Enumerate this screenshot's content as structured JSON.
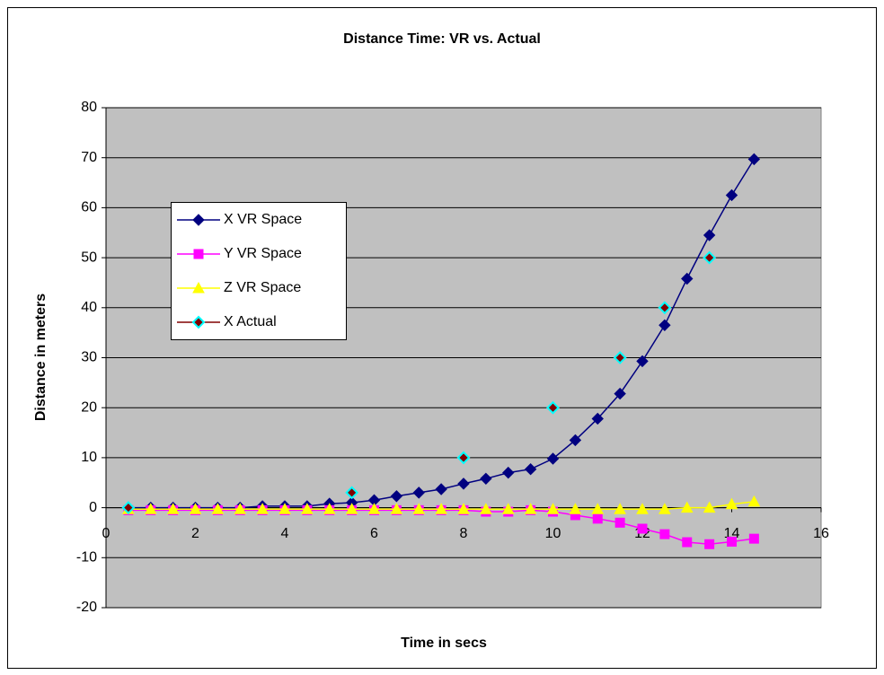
{
  "chart_data": {
    "type": "line",
    "title": "Distance Time: VR vs. Actual",
    "xlabel": "Time in secs",
    "ylabel": "Distance in meters",
    "xlim": [
      0,
      16
    ],
    "xticks": [
      0,
      2,
      4,
      6,
      8,
      10,
      12,
      14,
      16
    ],
    "ylim": [
      -20,
      80
    ],
    "yticks": [
      -20,
      -10,
      0,
      10,
      20,
      30,
      40,
      50,
      60,
      70,
      80
    ],
    "grid": true,
    "series": [
      {
        "name": "X VR Space",
        "color": "#000080",
        "marker": "diamond",
        "line": true,
        "x": [
          0.5,
          1,
          1.5,
          2,
          2.5,
          3,
          3.5,
          4,
          4.5,
          5,
          5.5,
          6,
          6.5,
          7,
          7.5,
          8,
          8.5,
          9,
          9.5,
          10,
          10.5,
          11,
          11.5,
          12,
          12.5,
          13,
          13.5,
          14,
          14.5
        ],
        "values": [
          0,
          0,
          0,
          0,
          0,
          0,
          0.3,
          0.3,
          0.3,
          0.8,
          1,
          1.5,
          2.3,
          3,
          3.7,
          4.8,
          5.8,
          7,
          7.7,
          9.8,
          13.5,
          17.8,
          22.8,
          29.3,
          36.5,
          45.8,
          54.5,
          62.5,
          69.7
        ]
      },
      {
        "name": "Y VR Space",
        "color": "#ff00ff",
        "marker": "square",
        "line": true,
        "x": [
          0.5,
          1,
          1.5,
          2,
          2.5,
          3,
          3.5,
          4,
          4.5,
          5,
          5.5,
          6,
          6.5,
          7,
          7.5,
          8,
          8.5,
          9,
          9.5,
          10,
          10.5,
          11,
          11.5,
          12,
          12.5,
          13,
          13.5,
          14,
          14.5
        ],
        "values": [
          -0.5,
          -0.5,
          -0.5,
          -0.5,
          -0.5,
          -0.5,
          -0.5,
          -0.5,
          -0.5,
          -0.5,
          -0.5,
          -0.5,
          -0.5,
          -0.5,
          -0.5,
          -0.5,
          -0.8,
          -0.8,
          -0.5,
          -0.8,
          -1.5,
          -2.2,
          -3,
          -4.2,
          -5.3,
          -6.9,
          -7.3,
          -6.8,
          -6.2
        ]
      },
      {
        "name": "Z VR Space",
        "color": "#ffff00",
        "marker": "triangle",
        "line": true,
        "x": [
          0.5,
          1,
          1.5,
          2,
          2.5,
          3,
          3.5,
          4,
          4.5,
          5,
          5.5,
          6,
          6.5,
          7,
          7.5,
          8,
          8.5,
          9,
          9.5,
          10,
          10.5,
          11,
          11.5,
          12,
          12.5,
          13,
          13.5,
          14,
          14.5
        ],
        "values": [
          -0.3,
          -0.3,
          -0.3,
          -0.3,
          -0.3,
          -0.3,
          -0.3,
          -0.3,
          -0.3,
          -0.3,
          -0.3,
          -0.3,
          -0.3,
          -0.3,
          -0.3,
          -0.3,
          -0.3,
          -0.3,
          -0.3,
          -0.3,
          -0.3,
          -0.3,
          -0.3,
          -0.3,
          -0.3,
          0,
          0,
          0.7,
          1.2
        ]
      },
      {
        "name": "X Actual",
        "color": "#800000",
        "edgecolor": "#00ffff",
        "marker": "diamond",
        "line": false,
        "x": [
          0.5,
          5.5,
          8,
          10,
          11.5,
          12.5,
          13.5
        ],
        "values": [
          0,
          3,
          10,
          20,
          30,
          40,
          50
        ]
      }
    ]
  }
}
